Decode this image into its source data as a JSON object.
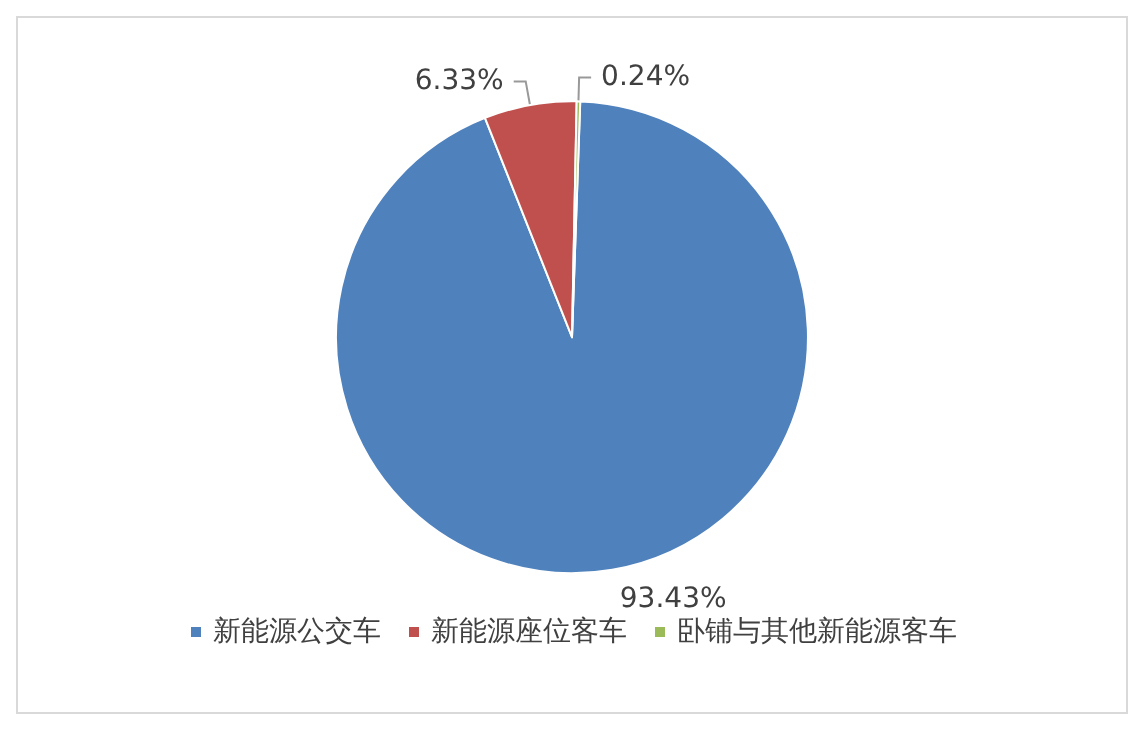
{
  "chart_data": {
    "type": "pie",
    "categories": [
      "新能源公交车",
      "新能源座位客车",
      "卧铺与其他新能源客车"
    ],
    "values": [
      93.43,
      6.33,
      0.24
    ],
    "colors": [
      "#4f81bd",
      "#c0504d",
      "#9bbb59"
    ],
    "value_labels": [
      "93.43%",
      "6.33%",
      "0.24%"
    ],
    "legend": "bottom"
  }
}
